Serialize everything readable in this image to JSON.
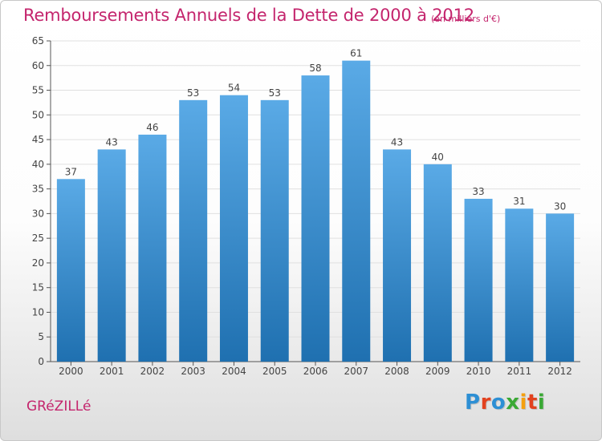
{
  "header": {
    "title": "Remboursements Annuels de la Dette de 2000 à 2012",
    "unit_note": "(en milliers d'€)"
  },
  "footer": {
    "commune": "GRéZILLé",
    "logo": {
      "text": "Proxiti",
      "letter_colors": [
        "#2d8fd4",
        "#e2421f",
        "#2d8fd4",
        "#3aa935",
        "#f5a00f",
        "#e2421f",
        "#3aa935"
      ]
    }
  },
  "colors": {
    "title": "#c4256d",
    "bar_top": "#5aaae6",
    "bar_bottom": "#1f70b0",
    "grid": "#e0e0e0",
    "axis": "#555555"
  },
  "chart_data": {
    "type": "bar",
    "title": "Remboursements Annuels de la Dette de 2000 à 2012",
    "categories": [
      "2000",
      "2001",
      "2002",
      "2003",
      "2004",
      "2005",
      "2006",
      "2007",
      "2008",
      "2009",
      "2010",
      "2011",
      "2012"
    ],
    "values": [
      37,
      43,
      46,
      53,
      54,
      53,
      58,
      61,
      43,
      40,
      33,
      31,
      30
    ],
    "ylim": [
      0,
      65
    ],
    "yticks": [
      0,
      5,
      10,
      15,
      20,
      25,
      30,
      35,
      40,
      45,
      50,
      55,
      60,
      65
    ],
    "grid": true,
    "legend": "none",
    "xlabel": "",
    "ylabel": ""
  }
}
